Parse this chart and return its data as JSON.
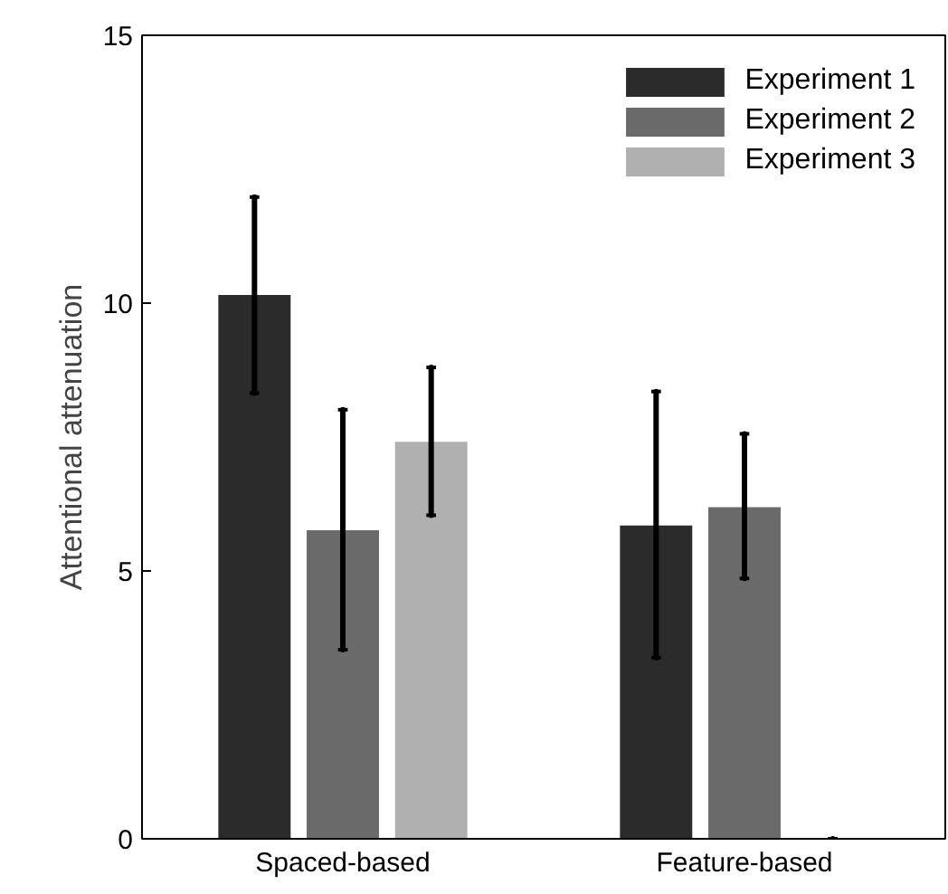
{
  "chart_data": {
    "type": "bar",
    "ylabel": "Attentional attenuation",
    "categories": [
      "Spaced-based",
      "Feature-based"
    ],
    "series": [
      {
        "name": "Experiment 1",
        "color": "#2b2b2b",
        "values": [
          10.15,
          5.85
        ],
        "errors": [
          [
            8.32,
            11.98
          ],
          [
            3.38,
            8.35
          ]
        ]
      },
      {
        "name": "Experiment 2",
        "color": "#6a6a6a",
        "values": [
          5.76,
          6.19
        ],
        "errors": [
          [
            3.53,
            8.01
          ],
          [
            4.86,
            7.56
          ]
        ]
      },
      {
        "name": "Experiment 3",
        "color": "#b0b0b0",
        "values": [
          7.41,
          0
        ],
        "errors": [
          [
            6.04,
            8.8
          ],
          [
            0,
            0
          ]
        ]
      }
    ],
    "ylim": [
      0,
      15
    ],
    "yticks": [
      0,
      5,
      10,
      15
    ],
    "grid": false,
    "legend": "top right"
  }
}
